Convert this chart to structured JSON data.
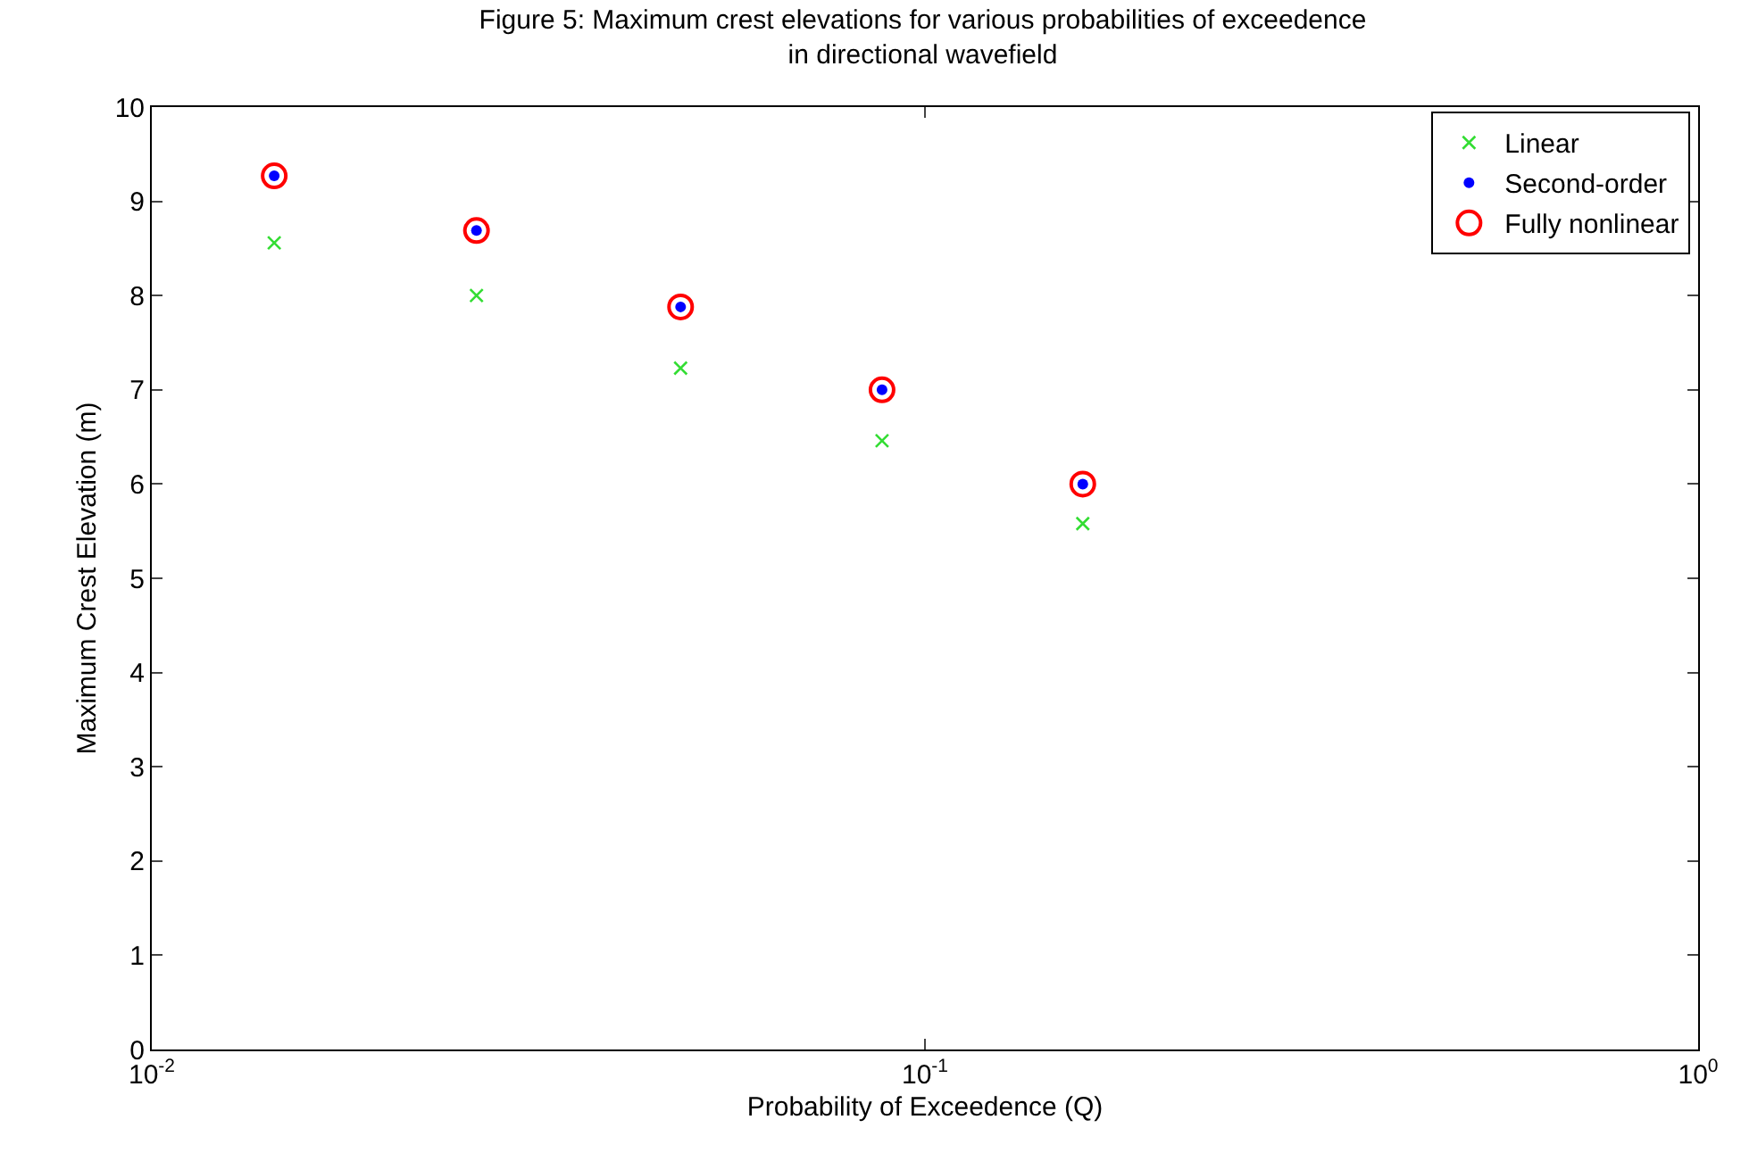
{
  "chart_data": {
    "type": "scatter",
    "title": "Figure 5: Maximum crest elevations for various probabilities of exceedence\nin directional wavefield",
    "xlabel": "Probability of Exceedence (Q)",
    "ylabel": "Maximum Crest Elevation (m)",
    "x": [
      0.0144,
      0.0263,
      0.0483,
      0.088,
      0.16
    ],
    "series": [
      {
        "name": "Linear",
        "color": "#33dd33",
        "marker": "cross",
        "values": [
          8.56,
          8.0,
          7.23,
          6.46,
          5.58
        ]
      },
      {
        "name": "Second-order",
        "color": "#0000ff",
        "marker": "circle",
        "values": [
          9.27,
          8.69,
          7.88,
          7.0,
          6.0
        ]
      },
      {
        "name": "Fully nonlinear",
        "color": "#ff0000",
        "marker": "circle-open",
        "values": [
          9.27,
          8.69,
          7.88,
          7.0,
          6.0
        ]
      }
    ],
    "log": "x",
    "xlim": [
      0.01,
      1
    ],
    "xticks": [
      {
        "value": 0.01,
        "label": "10$^{-2}$"
      },
      {
        "value": 0.1,
        "label": "10$^{-1}$"
      },
      {
        "value": 1,
        "label": "10$^{0}$"
      }
    ],
    "ylim": [
      0,
      10
    ],
    "yticks": [
      0,
      1,
      2,
      3,
      4,
      5,
      6,
      7,
      8,
      9,
      10
    ],
    "legend": "top right"
  }
}
